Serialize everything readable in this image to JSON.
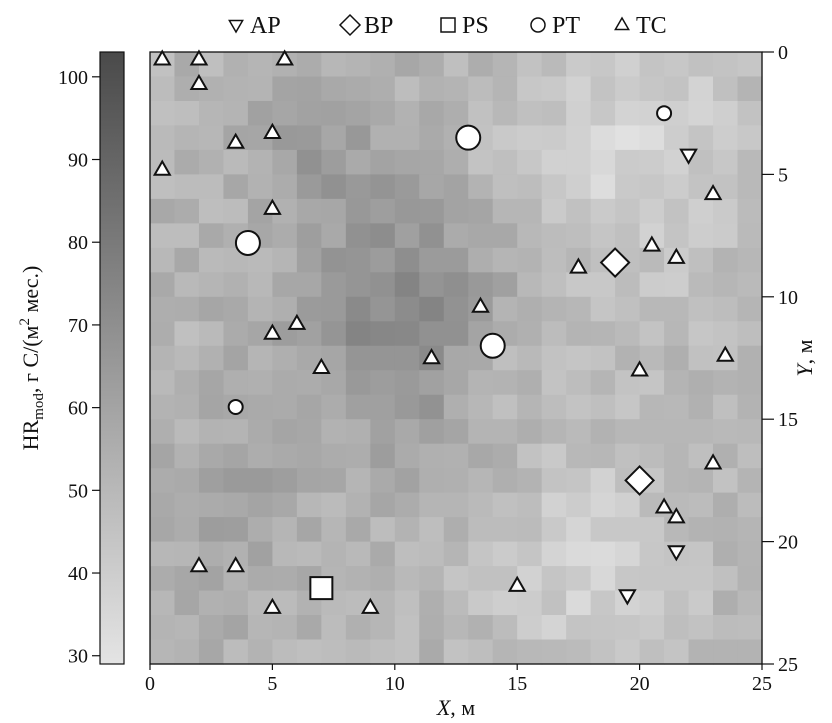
{
  "chart_data": {
    "type": "heatmap",
    "title": "",
    "xlabel": "X, м",
    "ylabel_right": "Y, м",
    "colorbar_label": "HR_mod, г C/(м² мес.)",
    "colorbar_label_parts": {
      "base": "HR",
      "sub": "mod",
      "unit_pre": ", г C/(м",
      "unit_sup": "2",
      "unit_post": " мес.)"
    },
    "xlim": [
      0,
      25
    ],
    "ylim": [
      0,
      25
    ],
    "y_axis_inverted": true,
    "x_ticks": [
      0,
      5,
      10,
      15,
      20,
      25
    ],
    "y_ticks": [
      0,
      5,
      10,
      15,
      20,
      25
    ],
    "colorbar_range": [
      29,
      103
    ],
    "colorbar_ticks": [
      30,
      40,
      50,
      60,
      70,
      80,
      90,
      100
    ],
    "colorscale": [
      "#e4e4e4",
      "#4a4a4a"
    ],
    "grid": {
      "nx": 25,
      "ny": 25,
      "cell_size": 1
    },
    "field_notes": "Heatmap values (HR_mod) on a 1 m grid estimated from shading: darkest core near X≈9–13, Y≈7–17; lightest toward X≈15–24, Y≈0–25.",
    "legend_position": "top",
    "legend": [
      {
        "key": "AP",
        "symbol": "triangle-down",
        "label": "AP"
      },
      {
        "key": "BP",
        "symbol": "diamond",
        "label": "BP"
      },
      {
        "key": "PS",
        "symbol": "square",
        "label": "PS"
      },
      {
        "key": "PT",
        "symbol": "circle",
        "label": "PT"
      },
      {
        "key": "TC",
        "symbol": "triangle-up",
        "label": "TC"
      }
    ],
    "series": [
      {
        "name": "AP",
        "symbol": "triangle-down",
        "points": [
          [
            22,
            4.2
          ],
          [
            21.5,
            20.4
          ],
          [
            19.5,
            22.2
          ]
        ]
      },
      {
        "name": "BP",
        "symbol": "diamond",
        "points": [
          [
            19,
            8.6
          ],
          [
            20,
            17.5
          ]
        ]
      },
      {
        "name": "PS",
        "symbol": "square",
        "points": [
          [
            7,
            21.9
          ]
        ]
      },
      {
        "name": "PT",
        "symbol": "circle",
        "sizes": [
          "small",
          "large",
          "large",
          "large",
          "small"
        ],
        "points": [
          [
            21,
            2.5
          ],
          [
            13,
            3.5
          ],
          [
            4,
            7.8
          ],
          [
            14,
            12
          ],
          [
            3.5,
            14.5
          ]
        ]
      },
      {
        "name": "TC",
        "symbol": "triangle-up",
        "points": [
          [
            0.5,
            0.3
          ],
          [
            2,
            0.3
          ],
          [
            5.5,
            0.3
          ],
          [
            2,
            1.3
          ],
          [
            5,
            3.3
          ],
          [
            3.5,
            3.7
          ],
          [
            0.5,
            4.8
          ],
          [
            23,
            5.8
          ],
          [
            5,
            6.4
          ],
          [
            20.5,
            7.9
          ],
          [
            21.5,
            8.4
          ],
          [
            17.5,
            8.8
          ],
          [
            13.5,
            10.4
          ],
          [
            5,
            11.5
          ],
          [
            6,
            11.1
          ],
          [
            11.5,
            12.5
          ],
          [
            23.5,
            12.4
          ],
          [
            7,
            12.9
          ],
          [
            20,
            13
          ],
          [
            23,
            16.8
          ],
          [
            21,
            18.6
          ],
          [
            21.5,
            19
          ],
          [
            2,
            21
          ],
          [
            3.5,
            21
          ],
          [
            15,
            21.8
          ],
          [
            5,
            22.7
          ],
          [
            9,
            22.7
          ]
        ]
      }
    ]
  }
}
